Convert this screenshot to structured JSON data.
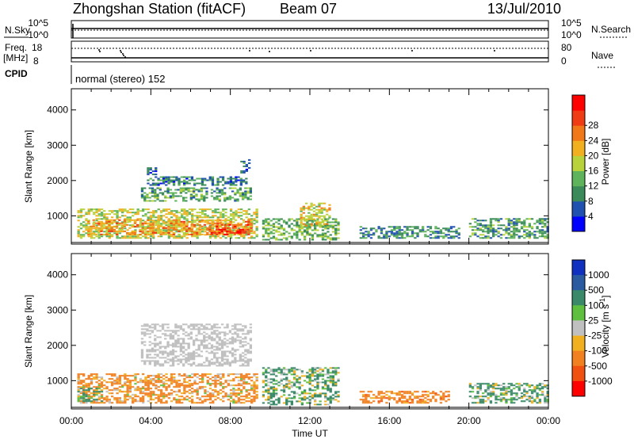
{
  "header": {
    "station": "Zhongshan Station (fitACF)",
    "beam": "Beam 07",
    "date": "13/Jul/2010"
  },
  "status_panel": {
    "nsky_label": "N.Sky",
    "nsky_ticks": [
      "10^5",
      "10^0"
    ],
    "nsearch_label": "N.Search",
    "nsearch_ticks": [
      "10^5",
      "10^0"
    ],
    "freq_label": "Freq.",
    "freq_unit": "[MHz]",
    "freq_ticks": [
      "18",
      "8"
    ],
    "nave_label": "Nave",
    "nave_ticks": [
      "80",
      "0"
    ],
    "cpid_label": "CPID",
    "cpid_text": "normal (stereo) 152"
  },
  "chart_data": [
    {
      "type": "heatmap",
      "panel": "power",
      "xlabel": "Time UT",
      "ylabel": "Slant Range [km]",
      "xlim": [
        0,
        24
      ],
      "ylim": [
        200,
        4600
      ],
      "x_ticks": [
        "00:00",
        "04:00",
        "08:00",
        "12:00",
        "16:00",
        "20:00",
        "00:00"
      ],
      "y_ticks": [
        1000,
        2000,
        3000,
        4000
      ],
      "colorbar": {
        "label": "Power [dB]",
        "ticks": [
          "4",
          "8",
          "12",
          "16",
          "20",
          "24",
          "28"
        ],
        "colors": [
          "#0000ff",
          "#2050b0",
          "#3a8a5a",
          "#5fb35a",
          "#b8d23c",
          "#f0b020",
          "#f07818",
          "#f03c14",
          "#ff0000"
        ]
      },
      "regions": [
        {
          "t": [
            0.3,
            9.4
          ],
          "r": [
            350,
            1200
          ],
          "value": 16
        },
        {
          "t": [
            0.8,
            9.0
          ],
          "r": [
            450,
            900
          ],
          "value": 22
        },
        {
          "t": [
            7.0,
            8.9
          ],
          "r": [
            450,
            750
          ],
          "value": 27
        },
        {
          "t": [
            3.5,
            9.0
          ],
          "r": [
            1400,
            1800
          ],
          "value": 10
        },
        {
          "t": [
            3.8,
            8.8
          ],
          "r": [
            1850,
            2100
          ],
          "value": 7
        },
        {
          "t": [
            3.8,
            4.3
          ],
          "r": [
            2150,
            2400
          ],
          "value": 6
        },
        {
          "t": [
            8.5,
            9.0
          ],
          "r": [
            2200,
            2600
          ],
          "value": 7
        },
        {
          "t": [
            9.6,
            13.5
          ],
          "r": [
            300,
            900
          ],
          "value": 12
        },
        {
          "t": [
            11.5,
            13.0
          ],
          "r": [
            700,
            1350
          ],
          "value": 18
        },
        {
          "t": [
            14.5,
            19.5
          ],
          "r": [
            350,
            700
          ],
          "value": 8
        },
        {
          "t": [
            20.0,
            24.0
          ],
          "r": [
            350,
            900
          ],
          "value": 10
        }
      ]
    },
    {
      "type": "heatmap",
      "panel": "velocity",
      "xlabel": "Time UT",
      "ylabel": "Slant Range [km]",
      "xlim": [
        0,
        24
      ],
      "ylim": [
        200,
        4600
      ],
      "x_ticks": [
        "00:00",
        "04:00",
        "08:00",
        "12:00",
        "16:00",
        "20:00",
        "00:00"
      ],
      "y_ticks": [
        1000,
        2000,
        3000,
        4000
      ],
      "colorbar": {
        "label": "Velocity [m s^-1]",
        "ticks": [
          "1000",
          "500",
          "100",
          "25",
          "-25",
          "-100",
          "-500",
          "-1000"
        ],
        "colors": [
          "#1030c0",
          "#2a5aa0",
          "#3a8a6a",
          "#5fc040",
          "#c0c0c0",
          "#f0b020",
          "#f08020",
          "#f05010",
          "#ff0000"
        ]
      },
      "regions": [
        {
          "t": [
            0.3,
            9.4
          ],
          "r": [
            350,
            1200
          ],
          "value": -200
        },
        {
          "t": [
            0.3,
            1.5
          ],
          "r": [
            350,
            800
          ],
          "value": 150
        },
        {
          "t": [
            3.5,
            9.0
          ],
          "r": [
            1400,
            2600
          ],
          "value": 0
        },
        {
          "t": [
            9.6,
            13.5
          ],
          "r": [
            300,
            1350
          ],
          "value": 150
        },
        {
          "t": [
            14.5,
            19.0
          ],
          "r": [
            350,
            700
          ],
          "value": -300
        },
        {
          "t": [
            20.0,
            24.0
          ],
          "r": [
            350,
            900
          ],
          "value": 150
        }
      ]
    }
  ]
}
